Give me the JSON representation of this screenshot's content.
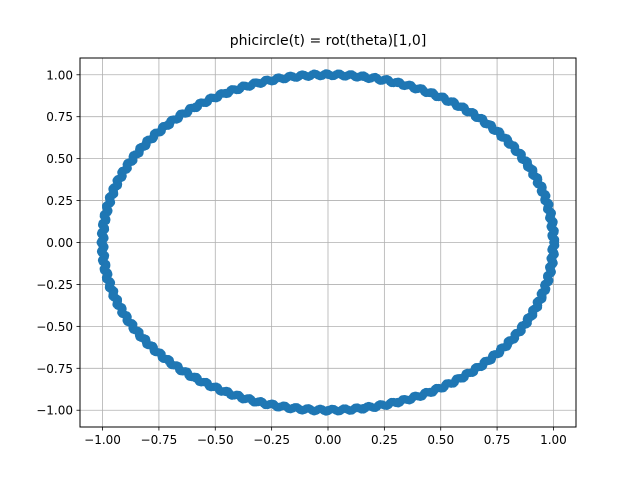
{
  "chart_data": {
    "type": "scatter",
    "title": "phicircle(t) =  rot(theta)[1,0]",
    "xlabel": "",
    "ylabel": "",
    "xlim": [
      -1.1,
      1.1
    ],
    "ylim": [
      -1.1,
      1.1
    ],
    "grid": true,
    "xticks": [
      -1.0,
      -0.75,
      -0.5,
      -0.25,
      0.0,
      0.25,
      0.5,
      0.75,
      1.0
    ],
    "yticks": [
      -1.0,
      -0.75,
      -0.5,
      -0.25,
      0.0,
      0.25,
      0.5,
      0.75,
      1.0
    ],
    "xtick_labels": [
      "−1.00",
      "−0.75",
      "−0.50",
      "−0.25",
      "0.00",
      "0.25",
      "0.50",
      "0.75",
      "1.00"
    ],
    "ytick_labels": [
      "−1.00",
      "−0.75",
      "−0.50",
      "−0.25",
      "0.00",
      "0.25",
      "0.50",
      "0.75",
      "1.00"
    ],
    "series": [
      {
        "color": "#1f77b4",
        "description": "points on the unit circle (cos t, sin t)",
        "x": [
          1.0,
          0.9877,
          0.9511,
          0.891,
          0.809,
          0.7071,
          0.5878,
          0.454,
          0.309,
          0.1564,
          0.0,
          -0.1564,
          -0.309,
          -0.454,
          -0.5878,
          -0.7071,
          -0.809,
          -0.891,
          -0.9511,
          -0.9877,
          -1.0,
          -0.9877,
          -0.9511,
          -0.891,
          -0.809,
          -0.7071,
          -0.5878,
          -0.454,
          -0.309,
          -0.1564,
          0.0,
          0.1564,
          0.309,
          0.454,
          0.5878,
          0.7071,
          0.809,
          0.891,
          0.9511,
          0.9877
        ],
        "y": [
          0.0,
          0.1564,
          0.309,
          0.454,
          0.5878,
          0.7071,
          0.809,
          0.891,
          0.9511,
          0.9877,
          1.0,
          0.9877,
          0.9511,
          0.891,
          0.809,
          0.7071,
          0.5878,
          0.454,
          0.309,
          0.1564,
          0.0,
          -0.1564,
          -0.309,
          -0.454,
          -0.5878,
          -0.7071,
          -0.809,
          -0.891,
          -0.9511,
          -0.9877,
          -1.0,
          -0.9877,
          -0.9511,
          -0.891,
          -0.809,
          -0.7071,
          -0.5878,
          -0.454,
          -0.309,
          -0.1564
        ]
      }
    ]
  }
}
